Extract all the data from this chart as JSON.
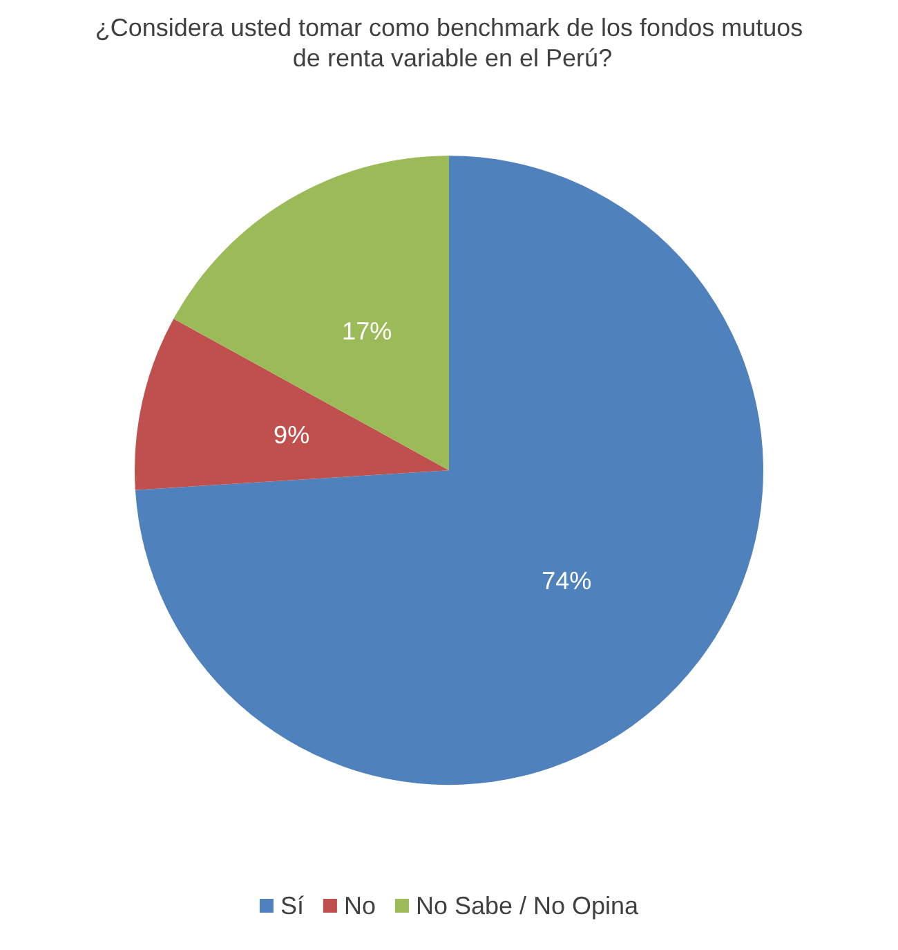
{
  "chart_data": {
    "type": "pie",
    "title": "¿Considera usted tomar como benchmark de los fondos mutuos de renta variable en el Perú?",
    "categories": [
      "Sí",
      "No",
      "No Sabe / No Opina"
    ],
    "values": [
      74,
      9,
      17
    ],
    "colors": [
      "#4f81bd",
      "#c0504d",
      "#9bbb59"
    ],
    "value_labels": [
      "74%",
      "9%",
      "17%"
    ],
    "legend": "bottom"
  }
}
